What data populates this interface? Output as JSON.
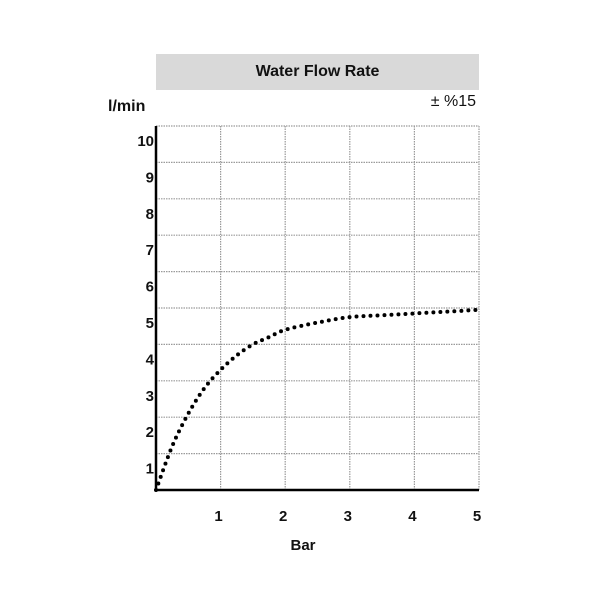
{
  "title": "Water Flow Rate",
  "tolerance": "± %15",
  "chart_data": {
    "type": "line",
    "title": "Water Flow Rate",
    "xlabel": "Bar",
    "ylabel": "l/min",
    "annotation": "± %15",
    "xlim": [
      0,
      5
    ],
    "ylim": [
      0,
      10
    ],
    "x_ticks": [
      "1",
      "2",
      "3",
      "4",
      "5"
    ],
    "y_ticks": [
      "1",
      "2",
      "3",
      "4",
      "5",
      "6",
      "7",
      "8",
      "9",
      "10"
    ],
    "grid": true,
    "line_style": "dotted",
    "line_color": "#000000",
    "series": [
      {
        "x": [
          0,
          0.25,
          0.5,
          0.75,
          1,
          1.25,
          1.5,
          1.75,
          2,
          2.5,
          3,
          3.5,
          4,
          4.5,
          5
        ],
        "values": [
          0,
          1.2,
          2.1,
          2.8,
          3.3,
          3.7,
          4.0,
          4.2,
          4.4,
          4.6,
          4.75,
          4.8,
          4.85,
          4.9,
          4.95
        ]
      }
    ]
  }
}
